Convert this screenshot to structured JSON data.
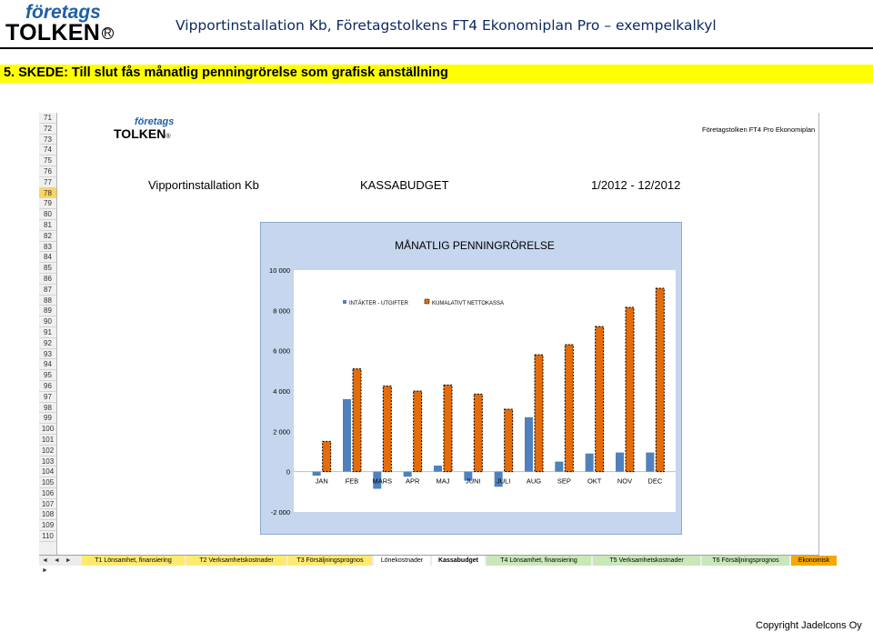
{
  "header": {
    "logo_line1": "företags",
    "logo_line2": "TOLKEN",
    "logo_mark": "R",
    "title": "Vipportinstallation Kb, Företagstolkens FT4 Ekonomiplan Pro – exempelkalkyl"
  },
  "stage": {
    "label": "5. SKEDE: Till slut fås månatlig penningrörelse som grafisk anställning"
  },
  "sheet": {
    "row_numbers": [
      "71",
      "72",
      "73",
      "74",
      "75",
      "76",
      "77",
      "78",
      "79",
      "80",
      "81",
      "82",
      "83",
      "84",
      "85",
      "86",
      "87",
      "88",
      "89",
      "90",
      "91",
      "92",
      "93",
      "94",
      "95",
      "96",
      "97",
      "98",
      "99",
      "100",
      "101",
      "102",
      "103",
      "104",
      "105",
      "106",
      "107",
      "108",
      "109",
      "110"
    ],
    "selected_row": "78",
    "logo_line1": "företags",
    "logo_line2": "TOLKEN",
    "product": "Företagstolken FT4 Pro Ekonomiplan",
    "company": "Vipportinstallation Kb",
    "document": "KASSABUDGET",
    "period": "1/2012 - 12/2012",
    "tab_nav": "◄ ◄ ► ►",
    "tabs": [
      {
        "label": "T1 Lönsamhet, finansiering",
        "color": "y"
      },
      {
        "label": "T2 Verksamhetskostnader",
        "color": "y"
      },
      {
        "label": "T3 Försäljningsprognos",
        "color": "y"
      },
      {
        "label": "Lönekostnader",
        "color": "w"
      },
      {
        "label": "Kassabudget",
        "color": "act"
      },
      {
        "label": "T4 Lönsamhet, finansiering",
        "color": "g"
      },
      {
        "label": "T5 Verksamhetskostnader",
        "color": "g"
      },
      {
        "label": "T6 Försäljningsprognos",
        "color": "g"
      },
      {
        "label": "Ekonomisk",
        "color": "o"
      }
    ]
  },
  "chart_data": {
    "type": "bar",
    "title": "MÅNATLIG PENNINGRÖRELSE",
    "categories": [
      "JAN",
      "FEB",
      "MARS",
      "APR",
      "MAJ",
      "JUNI",
      "JULI",
      "AUG",
      "SEP",
      "OKT",
      "NOV",
      "DEC"
    ],
    "series": [
      {
        "name": "INTÄKTER - UTGIFTER",
        "color": "#4f81bd",
        "values": [
          -200,
          3600,
          -850,
          -250,
          300,
          -450,
          -750,
          2700,
          500,
          900,
          950,
          950
        ]
      },
      {
        "name": "KUMALATIVT NETTOKASSA",
        "color": "#e46c0a",
        "values": [
          1500,
          5100,
          4250,
          4000,
          4300,
          3850,
          3100,
          5800,
          6300,
          7200,
          8150,
          9100
        ]
      }
    ],
    "ylim": [
      -2000,
      10000
    ],
    "yticks": [
      -2000,
      0,
      2000,
      4000,
      6000,
      8000,
      10000
    ],
    "ytick_labels": [
      "-2 000",
      "0",
      "2 000",
      "4 000",
      "6 000",
      "8 000",
      "10 000"
    ],
    "legend": "top-left inside plot",
    "grid": false
  },
  "footer": {
    "copyright": "Copyright Jadelcons Oy"
  }
}
